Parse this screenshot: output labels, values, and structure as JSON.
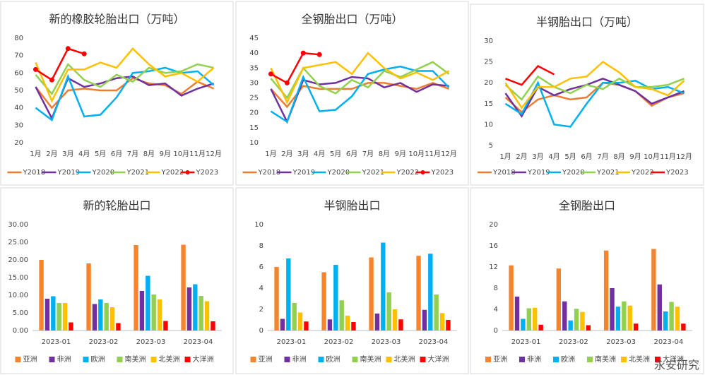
{
  "chart_data": [
    {
      "type": "line",
      "title": "新的橡胶轮胎出口（万吨）",
      "categories": [
        "1月",
        "2月",
        "3月",
        "4月",
        "5月",
        "6月",
        "7月",
        "8月",
        "9月",
        "10月",
        "11月",
        "12月"
      ],
      "ylim": [
        20,
        80
      ],
      "yticks": [
        20,
        30,
        40,
        50,
        60,
        70,
        80
      ],
      "grid": false,
      "legend": "bottom",
      "series": [
        {
          "name": "Y2018",
          "color": "#ED7D31",
          "values": [
            52,
            40,
            50,
            51,
            50,
            50,
            57,
            54,
            53,
            48,
            55,
            51
          ]
        },
        {
          "name": "Y2019",
          "color": "#7030A0",
          "values": [
            52,
            34,
            57,
            52,
            54,
            57,
            58,
            53,
            54,
            47,
            51,
            54
          ]
        },
        {
          "name": "Y2020",
          "color": "#00B0F0",
          "values": [
            40,
            33,
            58,
            35,
            36,
            46,
            60,
            61,
            63,
            60,
            61,
            53
          ]
        },
        {
          "name": "Y2021",
          "color": "#92D050",
          "values": [
            59,
            48,
            65,
            56,
            52,
            59,
            55,
            63,
            60,
            61,
            65,
            63
          ]
        },
        {
          "name": "Y2022",
          "color": "#FFC000",
          "values": [
            66,
            44,
            62,
            62,
            66,
            63,
            74,
            65,
            58,
            60,
            55,
            63
          ]
        },
        {
          "name": "Y2023",
          "color": "#FF0000",
          "marker": true,
          "values": [
            62,
            56,
            74,
            71,
            null,
            null,
            null,
            null,
            null,
            null,
            null,
            null
          ]
        }
      ]
    },
    {
      "type": "line",
      "title": "全钢胎出口（万吨）",
      "categories": [
        "1月",
        "2月",
        "3月",
        "4月",
        "5月",
        "6月",
        "7月",
        "8月",
        "9月",
        "10月",
        "11月",
        "12月"
      ],
      "ylim": [
        10,
        45
      ],
      "yticks": [
        10,
        15,
        20,
        25,
        30,
        35,
        40,
        45
      ],
      "grid": false,
      "legend": "bottom",
      "series": [
        {
          "name": "Y2018",
          "color": "#ED7D31",
          "values": [
            28,
            22,
            29,
            28,
            28,
            28,
            30,
            30,
            29,
            28,
            30,
            28
          ]
        },
        {
          "name": "Y2019",
          "color": "#7030A0",
          "values": [
            28,
            17,
            31,
            29.5,
            30,
            32,
            31.5,
            28.5,
            30,
            27,
            29.5,
            29
          ]
        },
        {
          "name": "Y2020",
          "color": "#00B0F0",
          "values": [
            20.5,
            17,
            32,
            20.5,
            21,
            25.5,
            33,
            34.5,
            35.5,
            34,
            34,
            28.5
          ]
        },
        {
          "name": "Y2021",
          "color": "#92D050",
          "values": [
            31.5,
            25,
            35,
            29,
            26.5,
            31,
            28.5,
            34,
            32,
            34.5,
            37,
            33
          ]
        },
        {
          "name": "Y2022",
          "color": "#FFC000",
          "values": [
            35,
            23.5,
            35,
            36,
            37,
            33,
            40,
            35,
            31.5,
            33.5,
            31,
            34
          ]
        },
        {
          "name": "Y2023",
          "color": "#FF0000",
          "marker": true,
          "values": [
            33,
            30,
            40,
            39.5,
            null,
            null,
            null,
            null,
            null,
            null,
            null,
            null
          ]
        }
      ]
    },
    {
      "type": "line",
      "title": "半钢胎出口（万吨）",
      "categories": [
        "1月",
        "2月",
        "3月",
        "4月",
        "5月",
        "6月",
        "7月",
        "8月",
        "9月",
        "10月",
        "11月",
        "12月"
      ],
      "ylim": [
        5,
        30
      ],
      "yticks": [
        5,
        10,
        15,
        20,
        25,
        30
      ],
      "grid": false,
      "legend": "bottom",
      "series": [
        {
          "name": "Y2018",
          "color": "#ED7D31",
          "values": [
            16.5,
            13,
            16,
            17,
            16,
            16.5,
            20,
            19.5,
            18,
            14.5,
            16.5,
            17.5
          ]
        },
        {
          "name": "Y2019",
          "color": "#7030A0",
          "values": [
            17.5,
            12,
            19,
            17,
            18.5,
            19.5,
            21,
            19.5,
            18,
            15,
            16.5,
            18
          ]
        },
        {
          "name": "Y2020",
          "color": "#00B0F0",
          "values": [
            15,
            12.5,
            20,
            10,
            9.5,
            15,
            20,
            20,
            20.5,
            18.5,
            19,
            17.5
          ]
        },
        {
          "name": "Y2021",
          "color": "#92D050",
          "values": [
            19.5,
            16,
            21.5,
            19,
            17.5,
            19.5,
            18.5,
            21,
            19,
            19,
            19.5,
            21
          ]
        },
        {
          "name": "Y2022",
          "color": "#FFC000",
          "values": [
            20,
            14,
            19,
            19,
            21,
            21.5,
            25,
            22.5,
            19,
            18.5,
            17,
            20.5
          ]
        },
        {
          "name": "Y2023",
          "color": "#FF0000",
          "values": [
            21,
            19.5,
            24,
            22,
            null,
            null,
            null,
            null,
            null,
            null,
            null,
            null
          ]
        }
      ]
    },
    {
      "type": "bar",
      "title": "新的轮胎出口",
      "categories": [
        "2023-01",
        "2023-02",
        "2023-03",
        "2023-04"
      ],
      "ylim": [
        0,
        30
      ],
      "yticks": [
        {
          "value": 0,
          "label": "0.00"
        },
        {
          "value": 5,
          "label": "5.00"
        },
        {
          "value": 10,
          "label": "10.00"
        },
        {
          "value": 15,
          "label": "15.00"
        },
        {
          "value": 20,
          "label": "20.00"
        },
        {
          "value": 25,
          "label": "25.00"
        },
        {
          "value": 30,
          "label": "30.00"
        }
      ],
      "grid": false,
      "legend": "bottom",
      "series": [
        {
          "name": "亚洲",
          "color": "#F4842D",
          "values": [
            20,
            19,
            24.2,
            24.3
          ]
        },
        {
          "name": "非洲",
          "color": "#7030A0",
          "values": [
            9,
            7.5,
            11.2,
            12.2
          ]
        },
        {
          "name": "欧洲",
          "color": "#00B0F0",
          "values": [
            9.7,
            8.8,
            15.5,
            13.1
          ]
        },
        {
          "name": "南美洲",
          "color": "#92D050",
          "values": [
            7.8,
            7.8,
            10.2,
            9.8
          ]
        },
        {
          "name": "北美洲",
          "color": "#FFC000",
          "values": [
            7.8,
            6.6,
            8.8,
            8.3
          ]
        },
        {
          "name": "大洋洲",
          "color": "#FF0000",
          "values": [
            2.3,
            2.1,
            2.7,
            2.6
          ]
        }
      ]
    },
    {
      "type": "bar",
      "title": "半钢胎出口",
      "categories": [
        "2023-01",
        "2023-02",
        "2023-03",
        "2023-04"
      ],
      "ylim": [
        0,
        10
      ],
      "yticks": [
        0,
        2,
        4,
        6,
        8,
        10
      ],
      "grid": false,
      "legend": "bottom",
      "series": [
        {
          "name": "亚洲",
          "color": "#F4842D",
          "values": [
            6,
            5.5,
            6.9,
            7.05
          ]
        },
        {
          "name": "非洲",
          "color": "#7030A0",
          "values": [
            1.1,
            1.05,
            1.6,
            1.95
          ]
        },
        {
          "name": "欧洲",
          "color": "#00B0F0",
          "values": [
            6.8,
            6.2,
            8.3,
            7.25
          ]
        },
        {
          "name": "南美洲",
          "color": "#92D050",
          "values": [
            2.6,
            2.85,
            3.6,
            3.4
          ]
        },
        {
          "name": "北美洲",
          "color": "#FFC000",
          "values": [
            1.7,
            1.4,
            2,
            1.65
          ]
        },
        {
          "name": "大洋洲",
          "color": "#FF0000",
          "values": [
            0.85,
            0.8,
            1.05,
            1
          ]
        }
      ]
    },
    {
      "type": "bar",
      "title": "全钢胎出口",
      "categories": [
        "2023-01",
        "2023-02",
        "2023-03",
        "2023-04"
      ],
      "ylim": [
        0,
        20
      ],
      "yticks": [
        0,
        4,
        8,
        12,
        16,
        20
      ],
      "grid": false,
      "legend": "bottom",
      "series": [
        {
          "name": "亚洲",
          "color": "#F4842D",
          "values": [
            12.3,
            11.7,
            15.1,
            15.4
          ]
        },
        {
          "name": "非洲",
          "color": "#7030A0",
          "values": [
            6.4,
            5.5,
            8,
            8.7
          ]
        },
        {
          "name": "欧洲",
          "color": "#00B0F0",
          "values": [
            2.2,
            1.9,
            4.5,
            3.6
          ]
        },
        {
          "name": "南美洲",
          "color": "#92D050",
          "values": [
            4.2,
            4.1,
            5.5,
            5.4
          ]
        },
        {
          "name": "北美洲",
          "color": "#FFC000",
          "values": [
            4.3,
            3.5,
            4.7,
            4.5
          ]
        },
        {
          "name": "大洋洲",
          "color": "#FF0000",
          "values": [
            1.1,
            1,
            1.3,
            1.3
          ]
        }
      ]
    }
  ],
  "watermark": "永安研究"
}
